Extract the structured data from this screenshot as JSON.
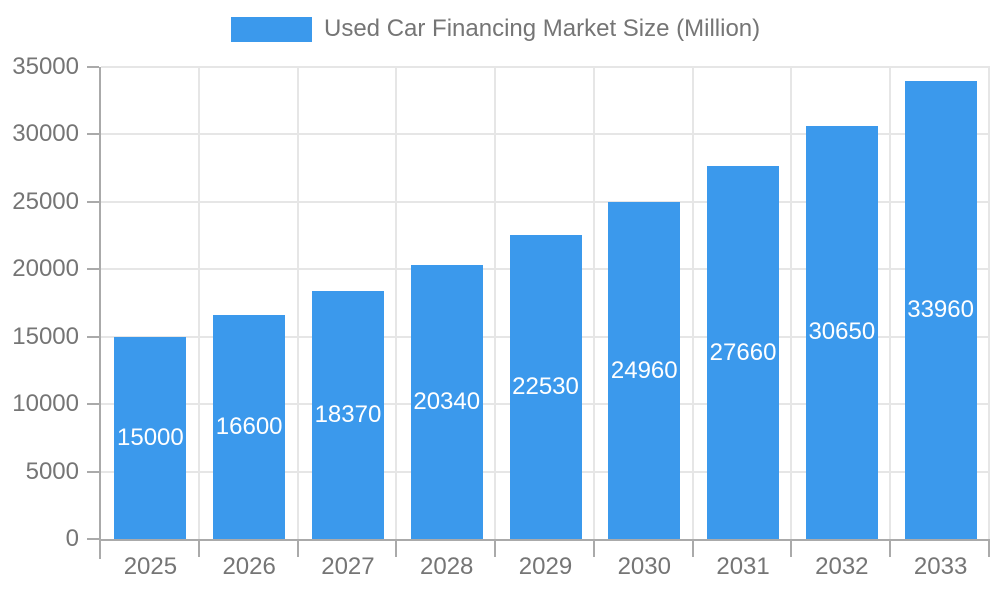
{
  "chart_data": {
    "type": "bar",
    "title": "Used Car Financing Market Size (Million)",
    "categories": [
      "2025",
      "2026",
      "2027",
      "2028",
      "2029",
      "2030",
      "2031",
      "2032",
      "2033"
    ],
    "values": [
      15000,
      16600,
      18370,
      20340,
      22530,
      24960,
      27660,
      30650,
      33960
    ],
    "xlabel": "",
    "ylabel": "",
    "ylim": [
      0,
      35000
    ],
    "yticks": [
      0,
      5000,
      10000,
      15000,
      20000,
      25000,
      30000,
      35000
    ],
    "grid": true,
    "legend_position": "top",
    "bar_label_position": "inside-center"
  },
  "legend": {
    "label": "Used Car Financing Market Size (Million)"
  },
  "colors": {
    "bar": "#3B99EC",
    "grid": "#E6E6E6",
    "axis": "#AAAAAA",
    "text": "#757575",
    "bar_label_text": "#FFFFFF",
    "background": "#FFFFFF"
  }
}
